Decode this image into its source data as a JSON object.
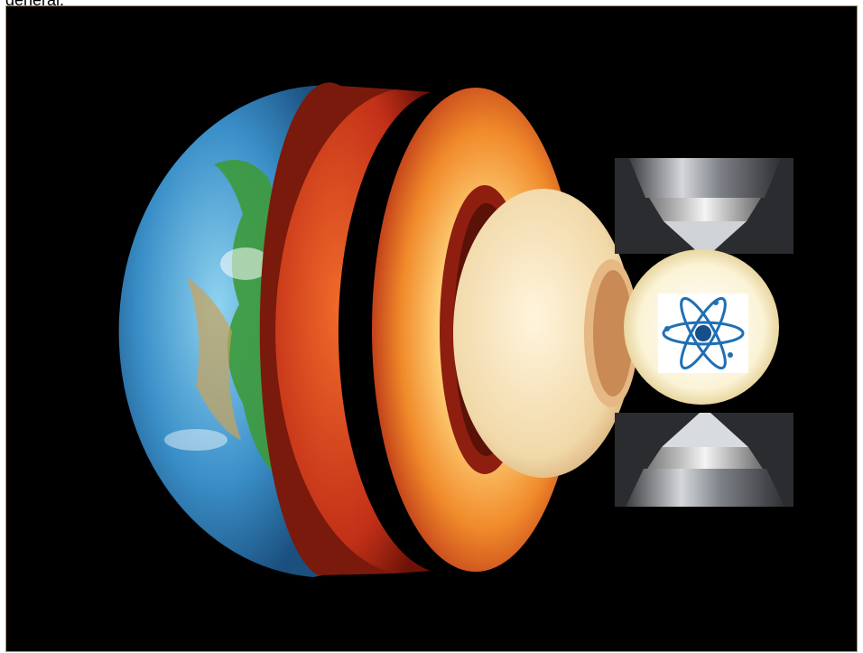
{
  "caption": {
    "fragment": "general."
  },
  "colors": {
    "background": "#000000",
    "frame_border": "#b89a4e",
    "ocean": "#2f7fb8",
    "land": "#3d9a3a",
    "mantle": "#c8381a",
    "outer_core": "#f2a23a",
    "inner_core": "#f3dfb0",
    "anvil_metal": "#8a8d92",
    "atom_blue": "#1f6fb4"
  },
  "icons": {
    "earth": "earth-cross-section-icon",
    "anvil_top": "diamond-anvil-top-icon",
    "anvil_bottom": "diamond-anvil-bottom-icon",
    "atom": "atom-icon"
  }
}
